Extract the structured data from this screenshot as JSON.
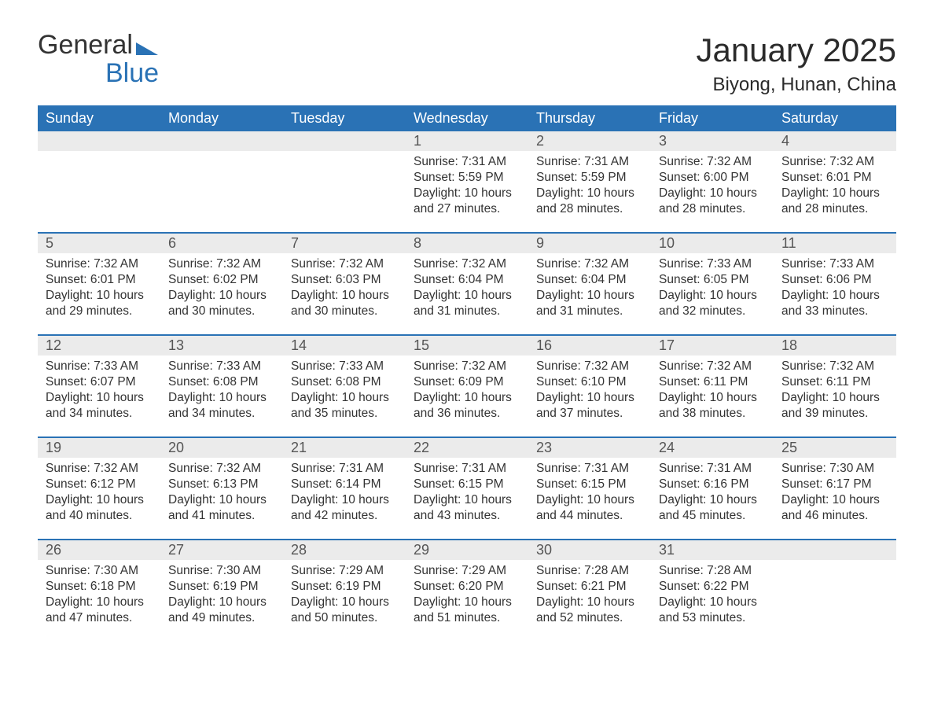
{
  "brand": {
    "part1": "General",
    "part2": "Blue"
  },
  "title": "January 2025",
  "location": "Biyong, Hunan, China",
  "colors": {
    "header_bg": "#2a72b5",
    "header_text": "#ffffff",
    "daynum_bg": "#ebebeb",
    "daynum_text": "#555555",
    "border": "#2a72b5",
    "body_text": "#333333",
    "background": "#ffffff"
  },
  "typography": {
    "title_fontsize": 42,
    "location_fontsize": 24,
    "dow_fontsize": 18,
    "daynum_fontsize": 18,
    "body_fontsize": 15.5,
    "font_family": "Arial"
  },
  "days_of_week": [
    "Sunday",
    "Monday",
    "Tuesday",
    "Wednesday",
    "Thursday",
    "Friday",
    "Saturday"
  ],
  "weeks": [
    [
      {
        "blank": true
      },
      {
        "blank": true
      },
      {
        "blank": true
      },
      {
        "num": "1",
        "sunrise": "Sunrise: 7:31 AM",
        "sunset": "Sunset: 5:59 PM",
        "daylight": "Daylight: 10 hours and 27 minutes."
      },
      {
        "num": "2",
        "sunrise": "Sunrise: 7:31 AM",
        "sunset": "Sunset: 5:59 PM",
        "daylight": "Daylight: 10 hours and 28 minutes."
      },
      {
        "num": "3",
        "sunrise": "Sunrise: 7:32 AM",
        "sunset": "Sunset: 6:00 PM",
        "daylight": "Daylight: 10 hours and 28 minutes."
      },
      {
        "num": "4",
        "sunrise": "Sunrise: 7:32 AM",
        "sunset": "Sunset: 6:01 PM",
        "daylight": "Daylight: 10 hours and 28 minutes."
      }
    ],
    [
      {
        "num": "5",
        "sunrise": "Sunrise: 7:32 AM",
        "sunset": "Sunset: 6:01 PM",
        "daylight": "Daylight: 10 hours and 29 minutes."
      },
      {
        "num": "6",
        "sunrise": "Sunrise: 7:32 AM",
        "sunset": "Sunset: 6:02 PM",
        "daylight": "Daylight: 10 hours and 30 minutes."
      },
      {
        "num": "7",
        "sunrise": "Sunrise: 7:32 AM",
        "sunset": "Sunset: 6:03 PM",
        "daylight": "Daylight: 10 hours and 30 minutes."
      },
      {
        "num": "8",
        "sunrise": "Sunrise: 7:32 AM",
        "sunset": "Sunset: 6:04 PM",
        "daylight": "Daylight: 10 hours and 31 minutes."
      },
      {
        "num": "9",
        "sunrise": "Sunrise: 7:32 AM",
        "sunset": "Sunset: 6:04 PM",
        "daylight": "Daylight: 10 hours and 31 minutes."
      },
      {
        "num": "10",
        "sunrise": "Sunrise: 7:33 AM",
        "sunset": "Sunset: 6:05 PM",
        "daylight": "Daylight: 10 hours and 32 minutes."
      },
      {
        "num": "11",
        "sunrise": "Sunrise: 7:33 AM",
        "sunset": "Sunset: 6:06 PM",
        "daylight": "Daylight: 10 hours and 33 minutes."
      }
    ],
    [
      {
        "num": "12",
        "sunrise": "Sunrise: 7:33 AM",
        "sunset": "Sunset: 6:07 PM",
        "daylight": "Daylight: 10 hours and 34 minutes."
      },
      {
        "num": "13",
        "sunrise": "Sunrise: 7:33 AM",
        "sunset": "Sunset: 6:08 PM",
        "daylight": "Daylight: 10 hours and 34 minutes."
      },
      {
        "num": "14",
        "sunrise": "Sunrise: 7:33 AM",
        "sunset": "Sunset: 6:08 PM",
        "daylight": "Daylight: 10 hours and 35 minutes."
      },
      {
        "num": "15",
        "sunrise": "Sunrise: 7:32 AM",
        "sunset": "Sunset: 6:09 PM",
        "daylight": "Daylight: 10 hours and 36 minutes."
      },
      {
        "num": "16",
        "sunrise": "Sunrise: 7:32 AM",
        "sunset": "Sunset: 6:10 PM",
        "daylight": "Daylight: 10 hours and 37 minutes."
      },
      {
        "num": "17",
        "sunrise": "Sunrise: 7:32 AM",
        "sunset": "Sunset: 6:11 PM",
        "daylight": "Daylight: 10 hours and 38 minutes."
      },
      {
        "num": "18",
        "sunrise": "Sunrise: 7:32 AM",
        "sunset": "Sunset: 6:11 PM",
        "daylight": "Daylight: 10 hours and 39 minutes."
      }
    ],
    [
      {
        "num": "19",
        "sunrise": "Sunrise: 7:32 AM",
        "sunset": "Sunset: 6:12 PM",
        "daylight": "Daylight: 10 hours and 40 minutes."
      },
      {
        "num": "20",
        "sunrise": "Sunrise: 7:32 AM",
        "sunset": "Sunset: 6:13 PM",
        "daylight": "Daylight: 10 hours and 41 minutes."
      },
      {
        "num": "21",
        "sunrise": "Sunrise: 7:31 AM",
        "sunset": "Sunset: 6:14 PM",
        "daylight": "Daylight: 10 hours and 42 minutes."
      },
      {
        "num": "22",
        "sunrise": "Sunrise: 7:31 AM",
        "sunset": "Sunset: 6:15 PM",
        "daylight": "Daylight: 10 hours and 43 minutes."
      },
      {
        "num": "23",
        "sunrise": "Sunrise: 7:31 AM",
        "sunset": "Sunset: 6:15 PM",
        "daylight": "Daylight: 10 hours and 44 minutes."
      },
      {
        "num": "24",
        "sunrise": "Sunrise: 7:31 AM",
        "sunset": "Sunset: 6:16 PM",
        "daylight": "Daylight: 10 hours and 45 minutes."
      },
      {
        "num": "25",
        "sunrise": "Sunrise: 7:30 AM",
        "sunset": "Sunset: 6:17 PM",
        "daylight": "Daylight: 10 hours and 46 minutes."
      }
    ],
    [
      {
        "num": "26",
        "sunrise": "Sunrise: 7:30 AM",
        "sunset": "Sunset: 6:18 PM",
        "daylight": "Daylight: 10 hours and 47 minutes."
      },
      {
        "num": "27",
        "sunrise": "Sunrise: 7:30 AM",
        "sunset": "Sunset: 6:19 PM",
        "daylight": "Daylight: 10 hours and 49 minutes."
      },
      {
        "num": "28",
        "sunrise": "Sunrise: 7:29 AM",
        "sunset": "Sunset: 6:19 PM",
        "daylight": "Daylight: 10 hours and 50 minutes."
      },
      {
        "num": "29",
        "sunrise": "Sunrise: 7:29 AM",
        "sunset": "Sunset: 6:20 PM",
        "daylight": "Daylight: 10 hours and 51 minutes."
      },
      {
        "num": "30",
        "sunrise": "Sunrise: 7:28 AM",
        "sunset": "Sunset: 6:21 PM",
        "daylight": "Daylight: 10 hours and 52 minutes."
      },
      {
        "num": "31",
        "sunrise": "Sunrise: 7:28 AM",
        "sunset": "Sunset: 6:22 PM",
        "daylight": "Daylight: 10 hours and 53 minutes."
      },
      {
        "blank": true
      }
    ]
  ]
}
